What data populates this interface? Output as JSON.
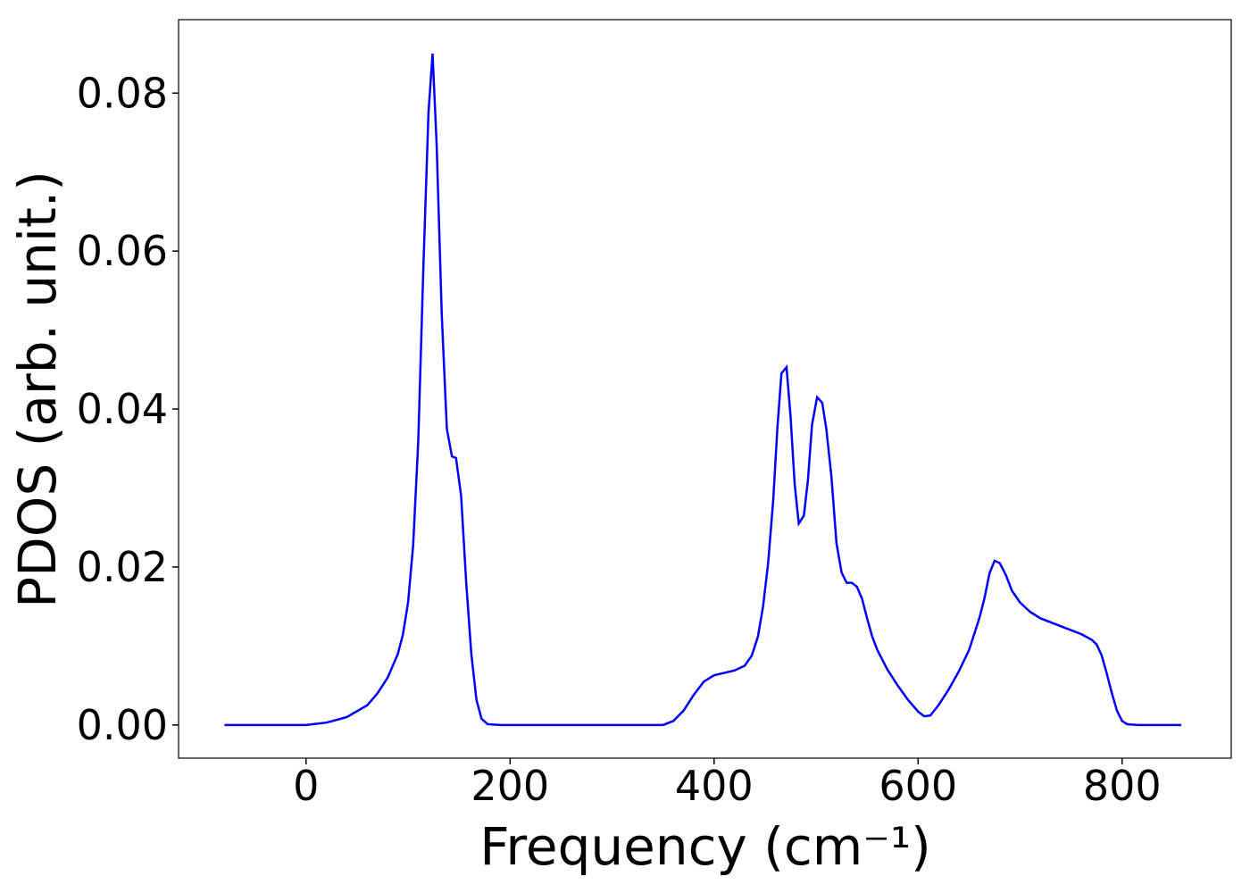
{
  "chart_data": {
    "type": "line",
    "xlabel": "Frequency (cm⁻¹)",
    "ylabel": "PDOS (arb. unit.)",
    "xlim": [
      -125,
      907
    ],
    "ylim": [
      -0.0042,
      0.0893
    ],
    "xticks": [
      0,
      200,
      400,
      600,
      800
    ],
    "yticks": [
      {
        "value": 0,
        "label": "0.00"
      },
      {
        "value": 0.02,
        "label": "0.02"
      },
      {
        "value": 0.04,
        "label": "0.04"
      },
      {
        "value": 0.06,
        "label": "0.06"
      },
      {
        "value": 0.08,
        "label": "0.08"
      }
    ],
    "series": [
      {
        "color": "#0000ff",
        "x": [
          -80,
          0,
          20,
          40,
          60,
          70,
          80,
          90,
          95,
          100,
          105,
          110,
          115,
          120,
          124,
          128,
          133,
          138,
          143,
          147,
          152,
          157,
          162,
          167,
          172,
          178,
          190,
          350,
          360,
          370,
          380,
          390,
          400,
          420,
          430,
          437,
          443,
          448,
          453,
          458,
          462,
          466,
          471,
          475,
          479,
          483,
          488,
          492,
          496,
          501,
          506,
          510,
          515,
          520,
          525,
          530,
          535,
          540,
          545,
          550,
          555,
          560,
          570,
          580,
          590,
          600,
          606,
          612,
          620,
          630,
          640,
          650,
          660,
          665,
          670,
          675,
          680,
          686,
          692,
          700,
          710,
          720,
          740,
          760,
          770,
          775,
          780,
          785,
          790,
          795,
          800,
          805,
          815,
          858
        ],
        "values": [
          0,
          0,
          0.0003,
          0.001,
          0.0025,
          0.004,
          0.006,
          0.009,
          0.0115,
          0.0155,
          0.0228,
          0.036,
          0.058,
          0.0775,
          0.085,
          0.0735,
          0.052,
          0.0375,
          0.034,
          0.0338,
          0.029,
          0.018,
          0.009,
          0.0032,
          0.0008,
          0.0001,
          0,
          0,
          0.0005,
          0.0018,
          0.0038,
          0.0055,
          0.0063,
          0.0069,
          0.0075,
          0.0088,
          0.0112,
          0.015,
          0.0205,
          0.0285,
          0.0375,
          0.0445,
          0.0453,
          0.039,
          0.0305,
          0.0255,
          0.0265,
          0.031,
          0.038,
          0.0415,
          0.0408,
          0.0375,
          0.0315,
          0.023,
          0.0193,
          0.018,
          0.018,
          0.0175,
          0.016,
          0.0135,
          0.0112,
          0.0095,
          0.007,
          0.005,
          0.0032,
          0.0017,
          0.0011,
          0.0012,
          0.0025,
          0.0045,
          0.0068,
          0.0095,
          0.0135,
          0.016,
          0.0192,
          0.0208,
          0.0205,
          0.019,
          0.017,
          0.0155,
          0.0143,
          0.0135,
          0.0125,
          0.0115,
          0.0108,
          0.0102,
          0.0088,
          0.0065,
          0.004,
          0.0018,
          0.0005,
          0.0001,
          0,
          0
        ]
      }
    ]
  }
}
